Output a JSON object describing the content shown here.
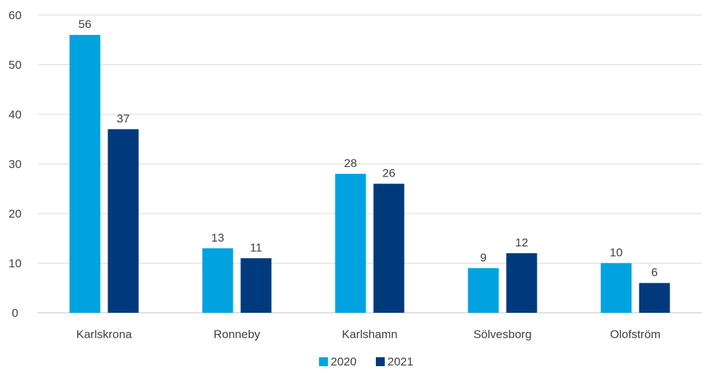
{
  "chart_data": {
    "type": "bar",
    "title": "",
    "xlabel": "",
    "ylabel": "",
    "categories": [
      "Karlskrona",
      "Ronneby",
      "Karlshamn",
      "Sölvesborg",
      "Olofström"
    ],
    "series": [
      {
        "name": "2020",
        "values": [
          56,
          13,
          28,
          9,
          10
        ],
        "color": "#00a3e0"
      },
      {
        "name": "2021",
        "values": [
          37,
          11,
          26,
          12,
          6
        ],
        "color": "#003a7d"
      }
    ],
    "ylim": [
      0,
      60
    ],
    "yticks": [
      0,
      10,
      20,
      30,
      40,
      50,
      60
    ],
    "grid": true,
    "legend": "bottom",
    "data_labels": true
  }
}
